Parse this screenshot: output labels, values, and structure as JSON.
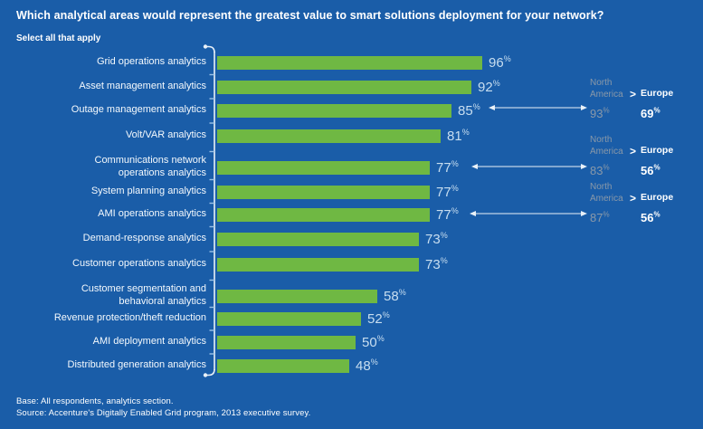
{
  "title": "Which analytical areas would represent the greatest value to smart solutions deployment for your network?",
  "subtitle": "Select all that apply",
  "footer": {
    "base": "Base: All respondents, analytics section.",
    "source": "Source: Accenture's Digitally Enabled Grid program, 2013 executive survey."
  },
  "colors": {
    "background": "#1A5DA8",
    "bar": "#6FB843",
    "value_text": "#C8DEF0",
    "label_text": "#FFFFFF",
    "muted_text": "#8A99A9",
    "axis": "#E9F1F8",
    "tick": "#9CC3E6"
  },
  "chart_data": {
    "type": "bar",
    "orientation": "horizontal",
    "unit": "%",
    "xlim": [
      0,
      100
    ],
    "grid": false,
    "categories": [
      "Grid operations analytics",
      "Asset management analytics",
      "Outage management analytics",
      "Volt/VAR analytics",
      "Communications network\noperations analytics",
      "System planning analytics",
      "AMI operations analytics",
      "Demand-response analytics",
      "Customer operations analytics",
      "Customer segmentation and\nbehavioral analytics",
      "Revenue protection/theft reduction",
      "AMI deployment analytics",
      "Distributed generation analytics"
    ],
    "values": [
      96,
      92,
      85,
      81,
      77,
      77,
      77,
      73,
      73,
      58,
      52,
      50,
      48
    ],
    "annotations": [
      {
        "category": "Outage management analytics",
        "row_index": 2,
        "region_a": "North\nAmerica",
        "comparator": ">",
        "region_b": "Europe",
        "value_a": 93,
        "value_b": 69
      },
      {
        "category": "Communications network operations analytics",
        "row_index": 4,
        "region_a": "North\nAmerica",
        "comparator": ">",
        "region_b": "Europe",
        "value_a": 83,
        "value_b": 56
      },
      {
        "category": "AMI operations analytics",
        "row_index": 6,
        "region_a": "North\nAmerica",
        "comparator": ">",
        "region_b": "Europe",
        "value_a": 87,
        "value_b": 56
      }
    ]
  }
}
